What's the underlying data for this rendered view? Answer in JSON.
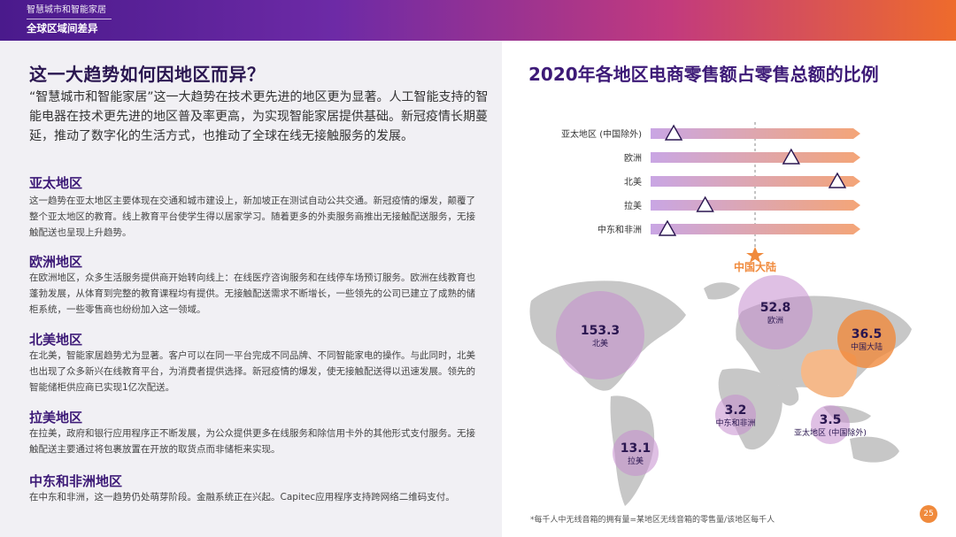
{
  "header": {
    "top_label": "智慧城市和智能家居",
    "sub_label": "全球区域间差异"
  },
  "left": {
    "heading": "这一大趋势如何因地区而异？",
    "intro": "“智慧城市和智能家居”这一大趋势在技术更先进的地区更为显著。人工智能支持的智能电器在技术更先进的地区普及率更高，为实现智能家居提供基础。新冠疫情长期蔓延，推动了数字化的生活方式，也推动了全球在线无接触服务的发展。",
    "sections": [
      {
        "title": "亚太地区",
        "body": "这一趋势在亚太地区主要体现在交通和城市建设上，新加坡正在测试自动公共交通。新冠疫情的爆发，颠覆了整个亚太地区的教育。线上教育平台使学生得以居家学习。随着更多的外卖服务商推出无接触配送服务，无接触配送也呈现上升趋势。"
      },
      {
        "title": "欧洲地区",
        "body": "在欧洲地区，众多生活服务提供商开始转向线上：在线医疗咨询服务和在线停车场预订服务。欧洲在线教育也蓬勃发展，从体育到完整的教育课程均有提供。无接触配送需求不断增长，一些领先的公司已建立了成熟的储柜系统，一些零售商也纷纷加入这一领域。"
      },
      {
        "title": "北美地区",
        "body": "在北美，智能家居趋势尤为显著。客户可以在同一平台完成不同品牌、不同智能家电的操作。与此同时，北美也出现了众多新兴在线教育平台，为消费者提供选择。新冠疫情的爆发，使无接触配送得以迅速发展。领先的智能储柜供应商已实现1亿次配送。"
      },
      {
        "title": "拉美地区",
        "body": "在拉美，政府和银行应用程序正不断发展，为公众提供更多在线服务和除信用卡外的其他形式支付服务。无接触配送主要通过将包裹放置在开放的取货点而非储柜来实现。"
      },
      {
        "title": "中东和非洲地区",
        "body": "在中东和非洲，这一趋势仍处萌芽阶段。金融系统正在兴起。Capitec应用程序支持跨网络二维码支付。"
      }
    ]
  },
  "right": {
    "title": "2020年各地区电商零售额占零售总额的比例",
    "bars": [
      {
        "label": "亚太地区 (中国除外)",
        "value": 0.11
      },
      {
        "label": "欧洲",
        "value": 0.67
      },
      {
        "label": "北美",
        "value": 0.89
      },
      {
        "label": "拉美",
        "value": 0.26
      },
      {
        "label": "中东和非洲",
        "value": 0.08
      }
    ],
    "china_marker": {
      "label": "中国大陆",
      "value": 0.5
    },
    "bubbles": [
      {
        "value": "153.3",
        "region": "北美"
      },
      {
        "value": "52.8",
        "region": "欧洲"
      },
      {
        "value": "36.5",
        "region": "中国大陆"
      },
      {
        "value": "3.2",
        "region": "中东和非洲"
      },
      {
        "value": "3.5",
        "region": "亚太地区 (中国除外)"
      },
      {
        "value": "13.1",
        "region": "拉美"
      }
    ],
    "footnote": "*每千人中无线音箱的拥有量=某地区无线音箱的零售量/该地区每千人",
    "page_number": "25"
  },
  "colors": {
    "purple": "#3d1a77",
    "orange": "#f08a3c",
    "bar_start": "#c9a6e4",
    "bar_end": "#f4a577"
  }
}
